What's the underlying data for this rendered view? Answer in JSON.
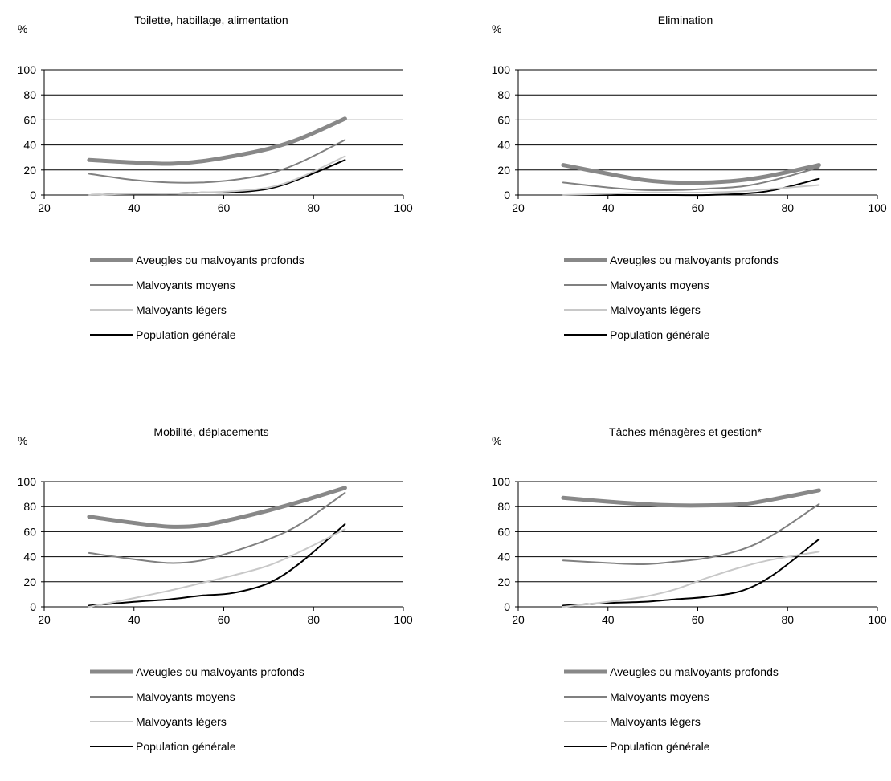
{
  "series_styles": [
    {
      "name": "Aveugles ou malvoyants profonds",
      "color": "#888888",
      "width": 5
    },
    {
      "name": "Malvoyants moyens",
      "color": "#808080",
      "width": 2
    },
    {
      "name": "Malvoyants légers",
      "color": "#c8c8c8",
      "width": 2
    },
    {
      "name": "Population générale",
      "color": "#000000",
      "width": 2
    }
  ],
  "chart_data": [
    {
      "type": "line",
      "title": "Toilette, habillage, alimentation",
      "ylabel": "%",
      "xlim": [
        20,
        100
      ],
      "ylim": [
        0,
        100
      ],
      "xticks": [
        20,
        40,
        60,
        80,
        100
      ],
      "yticks": [
        0,
        20,
        40,
        60,
        80,
        100
      ],
      "grid": "horizontal",
      "legend": "bottom",
      "series": [
        {
          "name": "Aveugles ou malvoyants profonds",
          "x": [
            30,
            40,
            48,
            55,
            62,
            70,
            77,
            87
          ],
          "y": [
            28,
            26,
            25,
            27,
            31,
            37,
            45,
            61
          ]
        },
        {
          "name": "Malvoyants moyens",
          "x": [
            30,
            40,
            48,
            55,
            62,
            70,
            77,
            87
          ],
          "y": [
            17,
            12,
            10,
            10,
            12,
            17,
            26,
            44
          ]
        },
        {
          "name": "Malvoyants légers",
          "x": [
            30,
            40,
            48,
            55,
            62,
            70,
            77,
            87
          ],
          "y": [
            0,
            1,
            1,
            2,
            3,
            6,
            14,
            31
          ]
        },
        {
          "name": "Population générale",
          "x": [
            30,
            40,
            48,
            55,
            62,
            70,
            77,
            87
          ],
          "y": [
            0,
            1,
            1,
            2,
            2,
            5,
            13,
            28
          ]
        }
      ]
    },
    {
      "type": "line",
      "title": "Elimination",
      "ylabel": "%",
      "xlim": [
        20,
        100
      ],
      "ylim": [
        0,
        100
      ],
      "xticks": [
        20,
        40,
        60,
        80,
        100
      ],
      "yticks": [
        0,
        20,
        40,
        60,
        80,
        100
      ],
      "grid": "horizontal",
      "legend": "bottom",
      "series": [
        {
          "name": "Aveugles ou malvoyants profonds",
          "x": [
            30,
            40,
            48,
            55,
            62,
            70,
            77,
            87
          ],
          "y": [
            24,
            17,
            12,
            10,
            10,
            12,
            16,
            24
          ]
        },
        {
          "name": "Malvoyants moyens",
          "x": [
            30,
            40,
            48,
            55,
            62,
            70,
            77,
            87
          ],
          "y": [
            10,
            6,
            4,
            4,
            5,
            7,
            12,
            22
          ]
        },
        {
          "name": "Malvoyants légers",
          "x": [
            30,
            40,
            48,
            55,
            62,
            70,
            77,
            87
          ],
          "y": [
            0,
            1,
            2,
            2,
            2,
            3,
            5,
            8
          ]
        },
        {
          "name": "Population générale",
          "x": [
            30,
            40,
            48,
            55,
            62,
            70,
            77,
            87
          ],
          "y": [
            0,
            0,
            0,
            0,
            0,
            1,
            4,
            13
          ]
        }
      ]
    },
    {
      "type": "line",
      "title": "Mobilité, déplacements",
      "ylabel": "%",
      "xlim": [
        20,
        100
      ],
      "ylim": [
        0,
        100
      ],
      "xticks": [
        20,
        40,
        60,
        80,
        100
      ],
      "yticks": [
        0,
        20,
        40,
        60,
        80,
        100
      ],
      "grid": "horizontal",
      "legend": "bottom",
      "series": [
        {
          "name": "Aveugles ou malvoyants profonds",
          "x": [
            30,
            40,
            48,
            55,
            62,
            70,
            77,
            87
          ],
          "y": [
            72,
            67,
            64,
            65,
            70,
            77,
            84,
            95
          ]
        },
        {
          "name": "Malvoyants moyens",
          "x": [
            30,
            40,
            48,
            55,
            62,
            70,
            77,
            87
          ],
          "y": [
            43,
            38,
            35,
            37,
            44,
            54,
            66,
            91
          ]
        },
        {
          "name": "Malvoyants légers",
          "x": [
            30,
            40,
            48,
            55,
            62,
            70,
            77,
            87
          ],
          "y": [
            0,
            7,
            13,
            19,
            25,
            33,
            44,
            62
          ]
        },
        {
          "name": "Population générale",
          "x": [
            30,
            40,
            48,
            55,
            62,
            70,
            77,
            87
          ],
          "y": [
            1,
            4,
            6,
            9,
            11,
            19,
            35,
            66
          ]
        }
      ]
    },
    {
      "type": "line",
      "title": "Tâches ménagères et gestion*",
      "ylabel": "%",
      "xlim": [
        20,
        100
      ],
      "ylim": [
        0,
        100
      ],
      "xticks": [
        20,
        40,
        60,
        80,
        100
      ],
      "yticks": [
        0,
        20,
        40,
        60,
        80,
        100
      ],
      "grid": "horizontal",
      "legend": "bottom",
      "series": [
        {
          "name": "Aveugles ou malvoyants profonds",
          "x": [
            30,
            40,
            48,
            55,
            62,
            70,
            77,
            87
          ],
          "y": [
            87,
            84,
            82,
            81,
            81,
            82,
            86,
            93
          ]
        },
        {
          "name": "Malvoyants moyens",
          "x": [
            30,
            40,
            48,
            55,
            62,
            70,
            77,
            87
          ],
          "y": [
            37,
            35,
            34,
            36,
            39,
            46,
            58,
            82
          ]
        },
        {
          "name": "Malvoyants légers",
          "x": [
            30,
            40,
            48,
            55,
            62,
            70,
            77,
            87
          ],
          "y": [
            0,
            4,
            8,
            14,
            23,
            32,
            38,
            44
          ]
        },
        {
          "name": "Population générale",
          "x": [
            30,
            40,
            48,
            55,
            62,
            70,
            77,
            87
          ],
          "y": [
            1,
            3,
            4,
            6,
            8,
            13,
            26,
            54
          ]
        }
      ]
    }
  ]
}
